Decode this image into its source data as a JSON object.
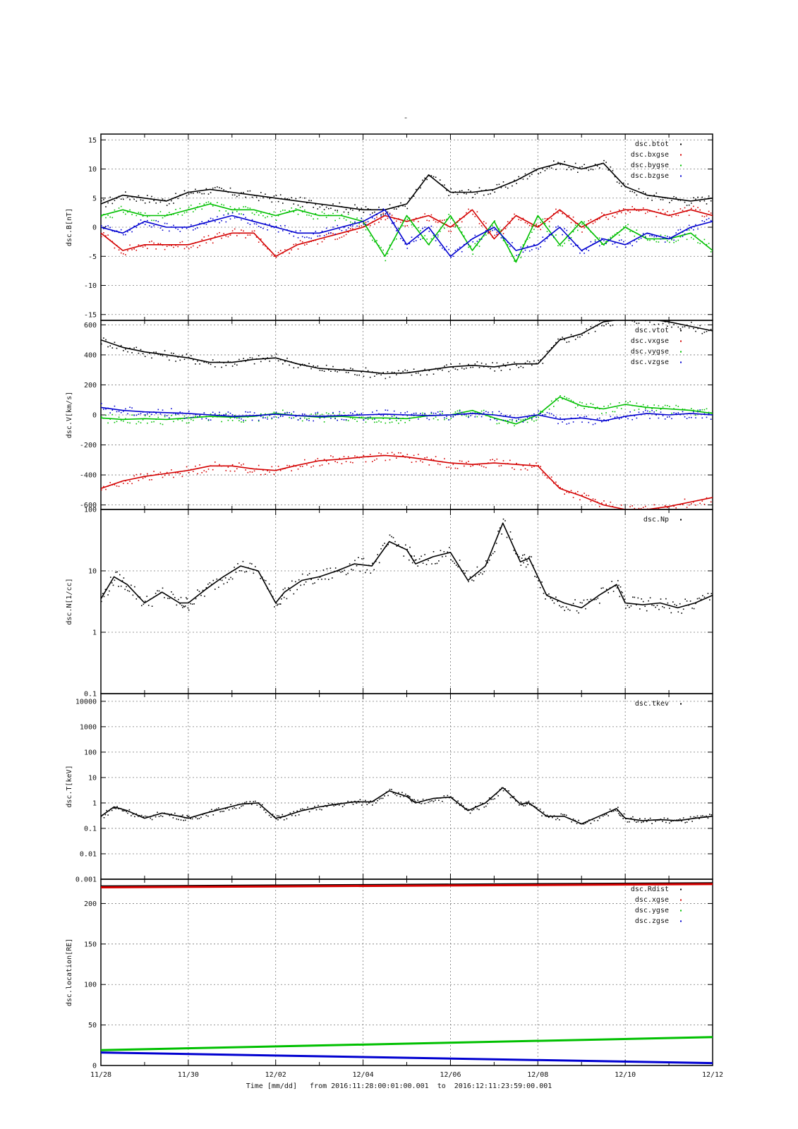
{
  "title": "-",
  "footer": {
    "time_label": "Time [mm/dd]",
    "from_label": "from",
    "from_value": "2016:11:28:00:01:00.001",
    "to_label": "to",
    "to_value": "2016:12:11:23:59:00.001"
  },
  "colors": {
    "black": "#000000",
    "red": "#d40000",
    "green": "#00c000",
    "blue": "#0000d0",
    "grid": "#666666"
  },
  "chart_data": [
    {
      "type": "scatter",
      "ylabel": "dsc.B[nT]",
      "ylim": [
        -16,
        16
      ],
      "yticks": [
        -15,
        -10,
        -5,
        0,
        5,
        10,
        15
      ],
      "ytick_labels": [
        "-15",
        "-10",
        "-5",
        "0",
        "5",
        "10",
        "15"
      ],
      "legend_placement": "top-right",
      "series": [
        {
          "name": "dsc.btot",
          "color": "#000000",
          "x": [
            0,
            0.5,
            1,
            1.5,
            2,
            2.5,
            3,
            3.5,
            4,
            4.5,
            5,
            5.5,
            6,
            6.5,
            7,
            7.5,
            8,
            8.5,
            9,
            9.5,
            10,
            10.5,
            11,
            11.5,
            12,
            12.5,
            13,
            13.5,
            14
          ],
          "y": [
            4,
            5.5,
            5,
            4.5,
            6,
            6.5,
            6,
            5.5,
            5,
            4.5,
            4,
            3.5,
            3,
            3,
            4,
            9,
            6,
            6,
            6.5,
            8,
            10,
            11,
            10,
            11,
            7,
            5.5,
            5,
            4.5,
            5
          ]
        },
        {
          "name": "dsc.bxgse",
          "color": "#d40000",
          "x": [
            0,
            0.5,
            1,
            1.5,
            2,
            2.5,
            3,
            3.5,
            4,
            4.5,
            5,
            5.5,
            6,
            6.5,
            7,
            7.5,
            8,
            8.5,
            9,
            9.5,
            10,
            10.5,
            11,
            11.5,
            12,
            12.5,
            13,
            13.5,
            14
          ],
          "y": [
            -1,
            -4,
            -3,
            -3,
            -3,
            -2,
            -1,
            -1,
            -5,
            -3,
            -2,
            -1,
            0,
            2,
            1,
            2,
            0,
            3,
            -2,
            2,
            0,
            3,
            0,
            2,
            3,
            3,
            2,
            3,
            2
          ]
        },
        {
          "name": "dsc.bygse",
          "color": "#00c000",
          "x": [
            0,
            0.5,
            1,
            1.5,
            2,
            2.5,
            3,
            3.5,
            4,
            4.5,
            5,
            5.5,
            6,
            6.5,
            7,
            7.5,
            8,
            8.5,
            9,
            9.5,
            10,
            10.5,
            11,
            11.5,
            12,
            12.5,
            13,
            13.5,
            14
          ],
          "y": [
            2,
            3,
            2,
            2,
            3,
            4,
            3,
            3,
            2,
            3,
            2,
            2,
            1,
            -5,
            2,
            -3,
            2,
            -4,
            1,
            -6,
            2,
            -3,
            1,
            -3,
            0,
            -2,
            -2,
            -1,
            -4
          ]
        },
        {
          "name": "dsc.bzgse",
          "color": "#0000d0",
          "x": [
            0,
            0.5,
            1,
            1.5,
            2,
            2.5,
            3,
            3.5,
            4,
            4.5,
            5,
            5.5,
            6,
            6.5,
            7,
            7.5,
            8,
            8.5,
            9,
            9.5,
            10,
            10.5,
            11,
            11.5,
            12,
            12.5,
            13,
            13.5,
            14
          ],
          "y": [
            0,
            -1,
            1,
            0,
            0,
            1,
            2,
            1,
            0,
            -1,
            -1,
            0,
            1,
            3,
            -3,
            0,
            -5,
            -2,
            0,
            -4,
            -3,
            0,
            -4,
            -2,
            -3,
            -1,
            -2,
            0,
            1
          ]
        }
      ]
    },
    {
      "type": "scatter",
      "ylabel": "dsc.V[km/s]",
      "ylim": [
        -630,
        630
      ],
      "yticks": [
        -600,
        -400,
        -200,
        0,
        200,
        400,
        600
      ],
      "ytick_labels": [
        "-600",
        "-400",
        "-200",
        "0",
        "200",
        "400",
        "600"
      ],
      "legend_placement": "top-right",
      "series": [
        {
          "name": "dsc.vtot",
          "color": "#000000",
          "x": [
            0,
            0.5,
            1,
            1.5,
            2,
            2.5,
            3,
            3.5,
            4,
            4.5,
            5,
            5.5,
            6,
            6.5,
            7,
            7.5,
            8,
            8.5,
            9,
            9.5,
            10,
            10.5,
            11,
            11.5,
            12,
            12.5,
            13,
            13.5,
            14
          ],
          "y": [
            500,
            450,
            420,
            400,
            380,
            350,
            350,
            370,
            380,
            340,
            310,
            300,
            290,
            275,
            280,
            300,
            320,
            330,
            320,
            340,
            340,
            500,
            540,
            620,
            640,
            640,
            620,
            590,
            560
          ]
        },
        {
          "name": "dsc.vxgse",
          "color": "#d40000",
          "x": [
            0,
            0.5,
            1,
            1.5,
            2,
            2.5,
            3,
            3.5,
            4,
            4.5,
            5,
            5.5,
            6,
            6.5,
            7,
            7.5,
            8,
            8.5,
            9,
            9.5,
            10,
            10.5,
            11,
            11.5,
            12,
            12.5,
            13,
            13.5,
            14
          ],
          "y": [
            -490,
            -440,
            -410,
            -390,
            -370,
            -340,
            -340,
            -360,
            -370,
            -335,
            -305,
            -295,
            -280,
            -270,
            -280,
            -300,
            -320,
            -330,
            -320,
            -330,
            -340,
            -490,
            -540,
            -600,
            -630,
            -630,
            -610,
            -580,
            -550
          ]
        },
        {
          "name": "dsc.vygse",
          "color": "#00c000",
          "x": [
            0,
            0.5,
            1,
            1.5,
            2,
            2.5,
            3,
            3.5,
            4,
            4.5,
            5,
            5.5,
            6,
            6.5,
            7,
            7.5,
            8,
            8.5,
            9,
            9.5,
            10,
            10.5,
            11,
            11.5,
            12,
            12.5,
            13,
            13.5,
            14
          ],
          "y": [
            -20,
            -30,
            -25,
            -30,
            -20,
            -10,
            -15,
            -10,
            10,
            -5,
            -15,
            -10,
            -20,
            -20,
            -25,
            -5,
            0,
            30,
            -20,
            -60,
            0,
            120,
            60,
            40,
            70,
            50,
            40,
            30,
            10
          ]
        },
        {
          "name": "dsc.vzgse",
          "color": "#0000d0",
          "x": [
            0,
            0.5,
            1,
            1.5,
            2,
            2.5,
            3,
            3.5,
            4,
            4.5,
            5,
            5.5,
            6,
            6.5,
            7,
            7.5,
            8,
            8.5,
            9,
            9.5,
            10,
            10.5,
            11,
            11.5,
            12,
            12.5,
            13,
            13.5,
            14
          ],
          "y": [
            50,
            30,
            20,
            15,
            10,
            0,
            -10,
            -5,
            5,
            -5,
            -10,
            -5,
            0,
            5,
            0,
            -5,
            0,
            10,
            0,
            -20,
            0,
            -30,
            -20,
            -40,
            -10,
            10,
            0,
            10,
            0
          ]
        }
      ]
    },
    {
      "type": "scatter",
      "ylabel": "dsc.N[1/cc]",
      "yscale": "log",
      "ylim": [
        0.1,
        100
      ],
      "yticks": [
        0.1,
        1,
        10,
        100
      ],
      "ytick_labels": [
        "0.1",
        "1",
        "10",
        "100"
      ],
      "legend_placement": "top-right",
      "series": [
        {
          "name": "dsc.Np",
          "color": "#000000",
          "x": [
            0,
            0.3,
            0.6,
            1,
            1.4,
            1.8,
            2,
            2.4,
            2.8,
            3.2,
            3.6,
            4,
            4.2,
            4.6,
            5,
            5.4,
            5.8,
            6.2,
            6.6,
            7,
            7.2,
            7.6,
            8,
            8.4,
            8.8,
            9.2,
            9.6,
            9.8,
            10.2,
            10.6,
            11,
            11.4,
            11.8,
            12,
            12.4,
            12.8,
            13.2,
            13.6,
            14
          ],
          "y": [
            3.5,
            8,
            6,
            3,
            4.5,
            3,
            3,
            5,
            8,
            12,
            10,
            3,
            4.5,
            7,
            8,
            10,
            13,
            12,
            30,
            22,
            13,
            17,
            20,
            7,
            12,
            60,
            14,
            16,
            4,
            3,
            2.5,
            4,
            6,
            3,
            2.8,
            3,
            2.5,
            3,
            4
          ]
        }
      ]
    },
    {
      "type": "scatter",
      "ylabel": "dsc.T[keV]",
      "yscale": "log",
      "ylim": [
        0.001,
        20000
      ],
      "yticks": [
        0.001,
        0.01,
        0.1,
        1,
        10,
        100,
        1000,
        10000
      ],
      "ytick_labels": [
        "0.001",
        "0.01",
        "0.1",
        "1",
        "10",
        "100",
        "1000",
        "10000"
      ],
      "legend_placement": "top-right",
      "series": [
        {
          "name": "dsc.tkev",
          "color": "#000000",
          "x": [
            0,
            0.3,
            0.6,
            1,
            1.4,
            1.8,
            2,
            2.4,
            2.8,
            3.2,
            3.6,
            4,
            4.2,
            4.6,
            5,
            5.4,
            5.8,
            6.2,
            6.6,
            7,
            7.2,
            7.6,
            8,
            8.4,
            8.8,
            9.2,
            9.6,
            9.8,
            10.2,
            10.6,
            11,
            11.4,
            11.8,
            12,
            12.4,
            12.8,
            13.2,
            13.6,
            14
          ],
          "y": [
            0.3,
            0.7,
            0.5,
            0.25,
            0.4,
            0.3,
            0.25,
            0.4,
            0.6,
            0.9,
            1,
            0.25,
            0.3,
            0.5,
            0.7,
            0.9,
            1.1,
            1.1,
            3,
            1.8,
            1,
            1.5,
            1.7,
            0.5,
            1,
            4,
            0.9,
            1,
            0.3,
            0.3,
            0.15,
            0.3,
            0.6,
            0.25,
            0.2,
            0.22,
            0.2,
            0.25,
            0.3
          ]
        }
      ]
    },
    {
      "type": "line",
      "ylabel": "dsc.location[RE]",
      "ylim": [
        0,
        230
      ],
      "yticks": [
        0,
        50,
        100,
        150,
        200
      ],
      "ytick_labels": [
        "0",
        "50",
        "100",
        "150",
        "200"
      ],
      "legend_placement": "top-right",
      "x_tick_labels": [
        "11/28",
        "11/30",
        "12/02",
        "12/04",
        "12/06",
        "12/08",
        "12/10",
        "12/12"
      ],
      "xlim": [
        0,
        14
      ],
      "series": [
        {
          "name": "dsc.Rdist",
          "color": "#000000",
          "x": [
            0,
            14
          ],
          "y": [
            221,
            225
          ]
        },
        {
          "name": "dsc.xgse",
          "color": "#d40000",
          "x": [
            0,
            14
          ],
          "y": [
            220,
            224
          ]
        },
        {
          "name": "dsc.ygse",
          "color": "#00c000",
          "x": [
            0,
            14
          ],
          "y": [
            19,
            35
          ]
        },
        {
          "name": "dsc.zgse",
          "color": "#0000d0",
          "x": [
            0,
            14
          ],
          "y": [
            16,
            3
          ]
        }
      ]
    }
  ]
}
